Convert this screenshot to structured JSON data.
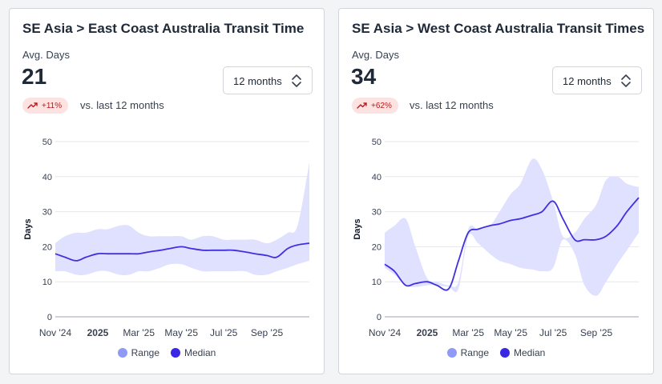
{
  "colors": {
    "range_fill": "#e0e0ff",
    "median_line": "#4030e0",
    "range_legend": "#8e9af5",
    "median_legend": "#3a27e6",
    "badge_bg": "#fde2e2",
    "badge_text": "#b91c1c",
    "grid": "#e5e7eb"
  },
  "cards": [
    {
      "title": "SE Asia > East Coast Australia Transit Time",
      "metric_label": "Avg. Days",
      "metric_value": "21",
      "period": "12 months",
      "change": "+11%",
      "compare": "vs. last 12 months",
      "legend": {
        "range": "Range",
        "median": "Median"
      },
      "chart_data": {
        "type": "area",
        "ylabel": "Days",
        "ylim": [
          0,
          50
        ],
        "yticks": [
          0,
          10,
          20,
          30,
          40,
          50
        ],
        "x_range": [
          "2024-11-01",
          "2025-11-01"
        ],
        "xticks": [
          {
            "label": "Nov '24",
            "date": "2024-11-01",
            "bold": false
          },
          {
            "label": "2025",
            "date": "2025-01-01",
            "bold": true
          },
          {
            "label": "Mar '25",
            "date": "2025-03-01",
            "bold": false
          },
          {
            "label": "May '25",
            "date": "2025-05-01",
            "bold": false
          },
          {
            "label": "Jul '25",
            "date": "2025-07-01",
            "bold": false
          },
          {
            "label": "Sep '25",
            "date": "2025-09-01",
            "bold": false
          }
        ],
        "series": [
          {
            "name": "Range",
            "x": [
              "2024-11-01",
              "2024-11-15",
              "2024-12-01",
              "2024-12-15",
              "2025-01-01",
              "2025-01-15",
              "2025-02-01",
              "2025-02-15",
              "2025-03-01",
              "2025-03-15",
              "2025-04-01",
              "2025-04-15",
              "2025-05-01",
              "2025-05-15",
              "2025-06-01",
              "2025-06-15",
              "2025-07-01",
              "2025-07-15",
              "2025-08-01",
              "2025-08-15",
              "2025-09-01",
              "2025-09-15",
              "2025-10-01",
              "2025-10-15",
              "2025-11-01"
            ],
            "low": [
              13,
              13,
              12,
              12,
              13,
              13,
              12,
              12,
              13,
              13,
              14,
              15,
              15,
              14,
              13,
              13,
              13,
              13,
              13,
              12,
              12,
              13,
              14,
              15,
              16
            ],
            "high": [
              21,
              23,
              24,
              24,
              25,
              25,
              26,
              26,
              24,
              23,
              23,
              23,
              23,
              22,
              23,
              23,
              22,
              22,
              22,
              22,
              21,
              22,
              24,
              26,
              44
            ]
          },
          {
            "name": "Median",
            "x": [
              "2024-11-01",
              "2024-11-15",
              "2024-12-01",
              "2024-12-15",
              "2025-01-01",
              "2025-01-15",
              "2025-02-01",
              "2025-02-15",
              "2025-03-01",
              "2025-03-15",
              "2025-04-01",
              "2025-04-15",
              "2025-05-01",
              "2025-05-15",
              "2025-06-01",
              "2025-06-15",
              "2025-07-01",
              "2025-07-15",
              "2025-08-01",
              "2025-08-15",
              "2025-09-01",
              "2025-09-15",
              "2025-10-01",
              "2025-10-15",
              "2025-11-01"
            ],
            "values": [
              18,
              17,
              16,
              17,
              18,
              18,
              18,
              18,
              18,
              18.5,
              19,
              19.5,
              20,
              19.5,
              19,
              19,
              19,
              19,
              18.5,
              18,
              17.5,
              17,
              19.5,
              20.5,
              21
            ]
          }
        ]
      }
    },
    {
      "title": "SE Asia > West Coast Australia Transit Times",
      "metric_label": "Avg. Days",
      "metric_value": "34",
      "period": "12 months",
      "change": "+62%",
      "compare": "vs. last 12 months",
      "legend": {
        "range": "Range",
        "median": "Median"
      },
      "chart_data": {
        "type": "area",
        "ylabel": "Days",
        "ylim": [
          0,
          50
        ],
        "yticks": [
          0,
          10,
          20,
          30,
          40,
          50
        ],
        "x_range": [
          "2024-11-01",
          "2025-11-01"
        ],
        "xticks": [
          {
            "label": "Nov '24",
            "date": "2024-11-01",
            "bold": false
          },
          {
            "label": "2025",
            "date": "2025-01-01",
            "bold": true
          },
          {
            "label": "Mar '25",
            "date": "2025-03-01",
            "bold": false
          },
          {
            "label": "May '25",
            "date": "2025-05-01",
            "bold": false
          },
          {
            "label": "Jul '25",
            "date": "2025-07-01",
            "bold": false
          },
          {
            "label": "Sep '25",
            "date": "2025-09-01",
            "bold": false
          }
        ],
        "series": [
          {
            "name": "Range",
            "x": [
              "2024-11-01",
              "2024-11-15",
              "2024-12-01",
              "2024-12-15",
              "2025-01-01",
              "2025-01-15",
              "2025-02-01",
              "2025-02-15",
              "2025-03-01",
              "2025-03-15",
              "2025-04-01",
              "2025-04-15",
              "2025-05-01",
              "2025-05-15",
              "2025-06-01",
              "2025-06-15",
              "2025-07-01",
              "2025-07-15",
              "2025-08-01",
              "2025-08-15",
              "2025-09-01",
              "2025-09-15",
              "2025-10-01",
              "2025-10-15",
              "2025-11-01"
            ],
            "low": [
              14,
              12,
              9,
              8.5,
              9,
              9,
              8.5,
              8,
              23,
              21,
              18,
              16,
              15,
              14,
              13.5,
              13,
              14,
              22,
              18,
              9,
              6,
              10,
              15,
              19,
              24
            ],
            "high": [
              24,
              26,
              28,
              20,
              11,
              10,
              9,
              10,
              25,
              25,
              26,
              30,
              35,
              38,
              45,
              42,
              33,
              23,
              24,
              28,
              32,
              39,
              40,
              38,
              37
            ]
          },
          {
            "name": "Median",
            "x": [
              "2024-11-01",
              "2024-11-15",
              "2024-12-01",
              "2024-12-15",
              "2025-01-01",
              "2025-01-15",
              "2025-02-01",
              "2025-02-15",
              "2025-03-01",
              "2025-03-15",
              "2025-04-01",
              "2025-04-15",
              "2025-05-01",
              "2025-05-15",
              "2025-06-01",
              "2025-06-15",
              "2025-07-01",
              "2025-07-15",
              "2025-08-01",
              "2025-08-15",
              "2025-09-01",
              "2025-09-15",
              "2025-10-01",
              "2025-10-15",
              "2025-11-01"
            ],
            "values": [
              15,
              13,
              9,
              9.5,
              10,
              9,
              8,
              16,
              24,
              25,
              26,
              26.5,
              27.5,
              28,
              29,
              30,
              33,
              28,
              22,
              22,
              22,
              23,
              26,
              30,
              34
            ]
          }
        ]
      }
    }
  ]
}
